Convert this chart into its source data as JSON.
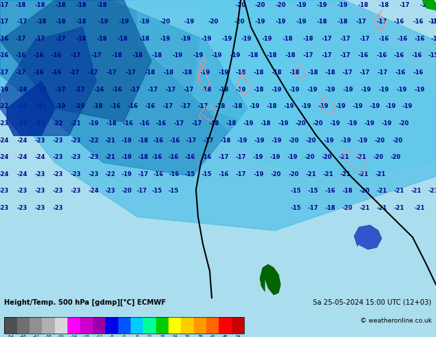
{
  "title_left": "Height/Temp. 500 hPa [gdmp][°C] ECMWF",
  "title_right": "Sa 25-05-2024 15:00 UTC (12+03)",
  "copyright": "© weatheronline.co.uk",
  "colorbar_values": [
    -54,
    -48,
    -42,
    -38,
    -30,
    -24,
    -18,
    -12,
    -8,
    0,
    8,
    12,
    18,
    24,
    30,
    38,
    42,
    48,
    54
  ],
  "colorbar_colors": [
    "#505050",
    "#707070",
    "#909090",
    "#b0b0b0",
    "#d8d8d8",
    "#ff00ff",
    "#cc00cc",
    "#9900aa",
    "#0000ee",
    "#0055ff",
    "#00ccff",
    "#00ff99",
    "#00cc00",
    "#ffff00",
    "#ffcc00",
    "#ff9900",
    "#ff6600",
    "#ff0000",
    "#cc0000"
  ],
  "bg_color": "#00e5ff",
  "fig_width": 6.34,
  "fig_height": 4.9,
  "dpi": 100,
  "band_colors": [
    "#00e5ff",
    "#00d4ee",
    "#00c3dd",
    "#30b0e0",
    "#4090d0",
    "#5070c0",
    "#6055b0",
    "#7040a0",
    "#2090cc",
    "#00a8e0"
  ],
  "label_color": "#000088",
  "contour_line_color": "#000000",
  "land_green_color": "#006600",
  "coastline_color": "#ff8888",
  "blue_blob_color": "#3355cc"
}
